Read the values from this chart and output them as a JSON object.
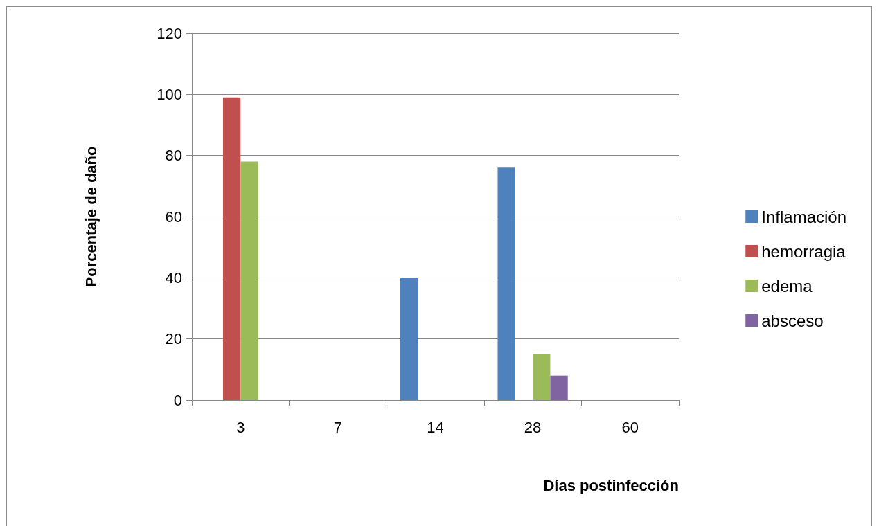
{
  "chart_data": {
    "type": "bar",
    "xlabel": "Días postinfección",
    "ylabel": "Porcentaje de daño",
    "categories": [
      "3",
      "7",
      "14",
      "28",
      "60"
    ],
    "series": [
      {
        "name": "Inflamación",
        "color": "#4f81bd",
        "values": [
          0,
          0,
          40,
          76,
          0
        ]
      },
      {
        "name": "hemorragia",
        "color": "#c0504d",
        "values": [
          99,
          0,
          0,
          0,
          0
        ]
      },
      {
        "name": "edema",
        "color": "#9bbb59",
        "values": [
          78,
          0,
          0,
          15,
          0
        ]
      },
      {
        "name": "absceso",
        "color": "#8064a2",
        "values": [
          0,
          0,
          0,
          8,
          0
        ]
      }
    ],
    "ylim": [
      0,
      120
    ],
    "yticks": [
      0,
      20,
      40,
      60,
      80,
      100,
      120
    ],
    "grid": "y",
    "legend": "right"
  }
}
